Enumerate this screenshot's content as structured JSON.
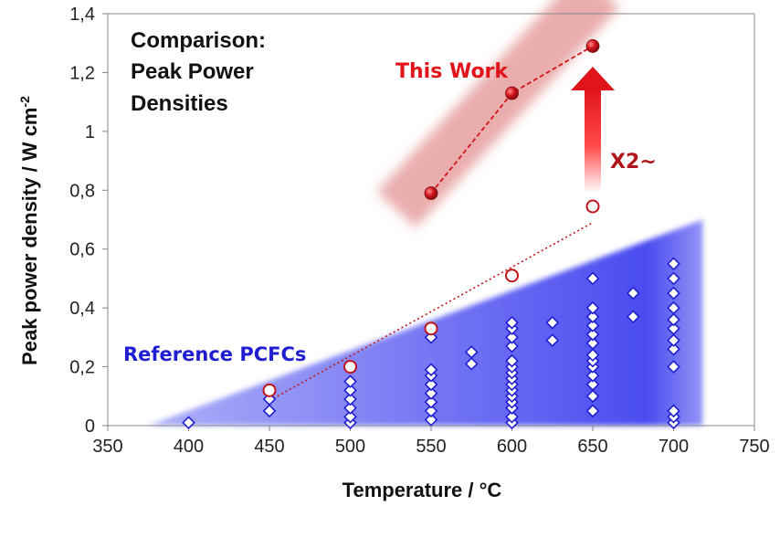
{
  "chart_data": {
    "type": "scatter",
    "title": [
      "Comparison:",
      "Peak Power",
      "Densities"
    ],
    "xlabel": "Temperature / °C",
    "ylabel": "Peak power density / W cm",
    "ylabel_sup": "-2",
    "xlim": [
      350,
      750
    ],
    "ylim": [
      0,
      1.4
    ],
    "x_ticks": [
      350,
      400,
      450,
      500,
      550,
      600,
      650,
      700,
      750
    ],
    "y_ticks": [
      {
        "v": 0,
        "label": "0"
      },
      {
        "v": 0.2,
        "label": "0,2"
      },
      {
        "v": 0.4,
        "label": "0,4"
      },
      {
        "v": 0.6,
        "label": "0,6"
      },
      {
        "v": 0.8,
        "label": "0,8"
      },
      {
        "v": 1.0,
        "label": "1"
      },
      {
        "v": 1.2,
        "label": "1,2"
      },
      {
        "v": 1.4,
        "label": "1,4"
      }
    ],
    "grid": false,
    "series": [
      {
        "name": "This Work",
        "marker": "filled-circle",
        "color": "#c0141a",
        "line": "dashed",
        "points": [
          [
            550,
            0.79
          ],
          [
            600,
            1.13
          ],
          [
            650,
            1.29
          ]
        ]
      },
      {
        "name": "",
        "marker": "open-circle",
        "color": "#c0141a",
        "line": "dotted",
        "points": [
          [
            450,
            0.12
          ],
          [
            500,
            0.2
          ],
          [
            550,
            0.33
          ],
          [
            600,
            0.51
          ],
          [
            650,
            0.745
          ]
        ]
      },
      {
        "name": "Reference PCFCs",
        "marker": "open-diamond",
        "color": "#1f1fd1",
        "points": [
          [
            400,
            0.01
          ],
          [
            450,
            0.05
          ],
          [
            450,
            0.09
          ],
          [
            500,
            0.01
          ],
          [
            500,
            0.03
          ],
          [
            500,
            0.06
          ],
          [
            500,
            0.09
          ],
          [
            500,
            0.12
          ],
          [
            500,
            0.15
          ],
          [
            550,
            0.02
          ],
          [
            550,
            0.05
          ],
          [
            550,
            0.08
          ],
          [
            550,
            0.11
          ],
          [
            550,
            0.14
          ],
          [
            550,
            0.17
          ],
          [
            550,
            0.19
          ],
          [
            550,
            0.3
          ],
          [
            575,
            0.21
          ],
          [
            575,
            0.25
          ],
          [
            600,
            0.01
          ],
          [
            600,
            0.03
          ],
          [
            600,
            0.06
          ],
          [
            600,
            0.08
          ],
          [
            600,
            0.1
          ],
          [
            600,
            0.12
          ],
          [
            600,
            0.14
          ],
          [
            600,
            0.16
          ],
          [
            600,
            0.18
          ],
          [
            600,
            0.2
          ],
          [
            600,
            0.22
          ],
          [
            600,
            0.27
          ],
          [
            600,
            0.3
          ],
          [
            600,
            0.33
          ],
          [
            600,
            0.35
          ],
          [
            625,
            0.29
          ],
          [
            625,
            0.35
          ],
          [
            650,
            0.05
          ],
          [
            650,
            0.1
          ],
          [
            650,
            0.14
          ],
          [
            650,
            0.17
          ],
          [
            650,
            0.2
          ],
          [
            650,
            0.22
          ],
          [
            650,
            0.24
          ],
          [
            650,
            0.28
          ],
          [
            650,
            0.31
          ],
          [
            650,
            0.34
          ],
          [
            650,
            0.37
          ],
          [
            650,
            0.4
          ],
          [
            650,
            0.5
          ],
          [
            675,
            0.37
          ],
          [
            675,
            0.45
          ],
          [
            700,
            0.01
          ],
          [
            700,
            0.03
          ],
          [
            700,
            0.05
          ],
          [
            700,
            0.2
          ],
          [
            700,
            0.26
          ],
          [
            700,
            0.29
          ],
          [
            700,
            0.33
          ],
          [
            700,
            0.36
          ],
          [
            700,
            0.4
          ],
          [
            700,
            0.45
          ],
          [
            700,
            0.5
          ],
          [
            700,
            0.55
          ]
        ]
      }
    ],
    "shaded_region": {
      "color": "#4a4cf0",
      "polygon": [
        [
          375,
          0
        ],
        [
          718,
          0
        ],
        [
          718,
          0.7
        ]
      ]
    },
    "annotations": {
      "this_work": "This Work",
      "reference": "Reference PCFCs",
      "factor": "X2~"
    }
  }
}
